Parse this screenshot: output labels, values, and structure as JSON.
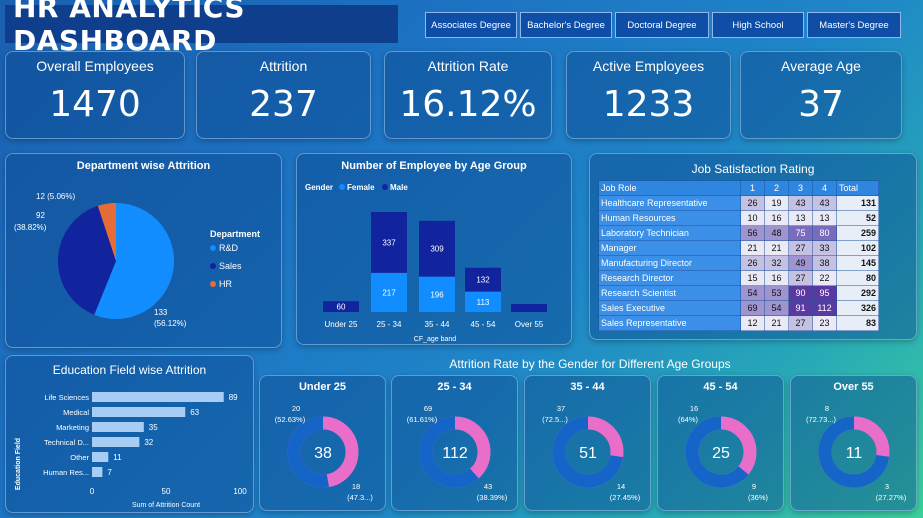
{
  "header": {
    "title": "HR ANALYTICS DASHBOARD",
    "filters": [
      "Associates Degree",
      "Bachelor's Degree",
      "Doctoral Degree",
      "High School",
      "Master's Degree"
    ]
  },
  "kpis": [
    {
      "label": "Overall Employees",
      "value": "1470"
    },
    {
      "label": "Attrition",
      "value": "237"
    },
    {
      "label": "Attrition Rate",
      "value": "16.12%"
    },
    {
      "label": "Active Employees",
      "value": "1233"
    },
    {
      "label": "Average Age",
      "value": "37"
    }
  ],
  "colors": {
    "rd": "#118dff",
    "sales": "#12239e",
    "hr": "#e66c37",
    "female": "#118dff",
    "male": "#12239e",
    "donut_male": "#1565c8",
    "donut_female": "#e96ec9"
  },
  "chart_data": [
    {
      "type": "pie",
      "title": "Department wise Attrition",
      "legend_title": "Department",
      "labels": [
        "R&D",
        "Sales",
        "HR"
      ],
      "values": [
        133,
        92,
        12
      ],
      "value_labels": [
        "133",
        "92",
        "12 (5.06%)"
      ],
      "percent_labels": [
        "(56.12%)",
        "(38.82%)",
        ""
      ],
      "legend": "right"
    },
    {
      "type": "bar",
      "stacked": true,
      "title": "Number of Employee by Age Group",
      "legend_title": "Gender",
      "categories": [
        "Under 25",
        "25 - 34",
        "35 - 44",
        "45 - 54",
        "Over 55"
      ],
      "series": [
        {
          "name": "Female",
          "values": [
            0,
            217,
            196,
            113,
            0
          ]
        },
        {
          "name": "Male",
          "values": [
            60,
            337,
            309,
            132,
            0
          ]
        }
      ],
      "xlabel": "CF_age band",
      "legend": "top-left"
    },
    {
      "type": "table",
      "title": "Job Satisfaction Rating",
      "columns": [
        "Job Role",
        "1",
        "2",
        "3",
        "4",
        "Total"
      ],
      "rows": [
        [
          "Healthcare Representative",
          "26",
          "19",
          "43",
          "43",
          "131"
        ],
        [
          "Human Resources",
          "10",
          "16",
          "13",
          "13",
          "52"
        ],
        [
          "Laboratory Technician",
          "56",
          "48",
          "75",
          "80",
          "259"
        ],
        [
          "Manager",
          "21",
          "21",
          "27",
          "33",
          "102"
        ],
        [
          "Manufacturing Director",
          "26",
          "32",
          "49",
          "38",
          "145"
        ],
        [
          "Research Director",
          "15",
          "16",
          "27",
          "22",
          "80"
        ],
        [
          "Research Scientist",
          "54",
          "53",
          "90",
          "95",
          "292"
        ],
        [
          "Sales Executive",
          "69",
          "54",
          "91",
          "112",
          "326"
        ],
        [
          "Sales Representative",
          "12",
          "21",
          "27",
          "23",
          "83"
        ]
      ]
    },
    {
      "type": "bar",
      "orientation": "horizontal",
      "title": "Education Field wise Attrition",
      "categories": [
        "Life Sciences",
        "Medical",
        "Marketing",
        "Technical D...",
        "Other",
        "Human Res..."
      ],
      "values": [
        89,
        63,
        35,
        32,
        11,
        7
      ],
      "xlabel": "Sum of Attrition Count",
      "ylabel": "Education Field",
      "xlim": [
        0,
        100
      ],
      "xticks": [
        "0",
        "50",
        "100"
      ]
    },
    {
      "type": "pie",
      "donut": true,
      "group_title": "Attrition Rate by the Gender for Different Age Groups",
      "charts": [
        {
          "title": "Under 25",
          "center": "38",
          "male": 20,
          "female": 18,
          "male_label": "20",
          "male_pct": "(52.63%)",
          "female_label": "18",
          "female_pct": "(47.3...)"
        },
        {
          "title": "25 - 34",
          "center": "112",
          "male": 69,
          "female": 43,
          "male_label": "69",
          "male_pct": "(61.61%)",
          "female_label": "43",
          "female_pct": "(38.39%)"
        },
        {
          "title": "35 - 44",
          "center": "51",
          "male": 37,
          "female": 14,
          "male_label": "37",
          "male_pct": "(72.5...)",
          "female_label": "14",
          "female_pct": "(27.45%)"
        },
        {
          "title": "45 - 54",
          "center": "25",
          "male": 16,
          "female": 9,
          "male_label": "16",
          "male_pct": "(64%)",
          "female_label": "9",
          "female_pct": "(36%)"
        },
        {
          "title": "Over 55",
          "center": "11",
          "male": 8,
          "female": 3,
          "male_label": "8",
          "male_pct": "(72.73...)",
          "female_label": "3",
          "female_pct": "(27.27%)"
        }
      ]
    }
  ]
}
